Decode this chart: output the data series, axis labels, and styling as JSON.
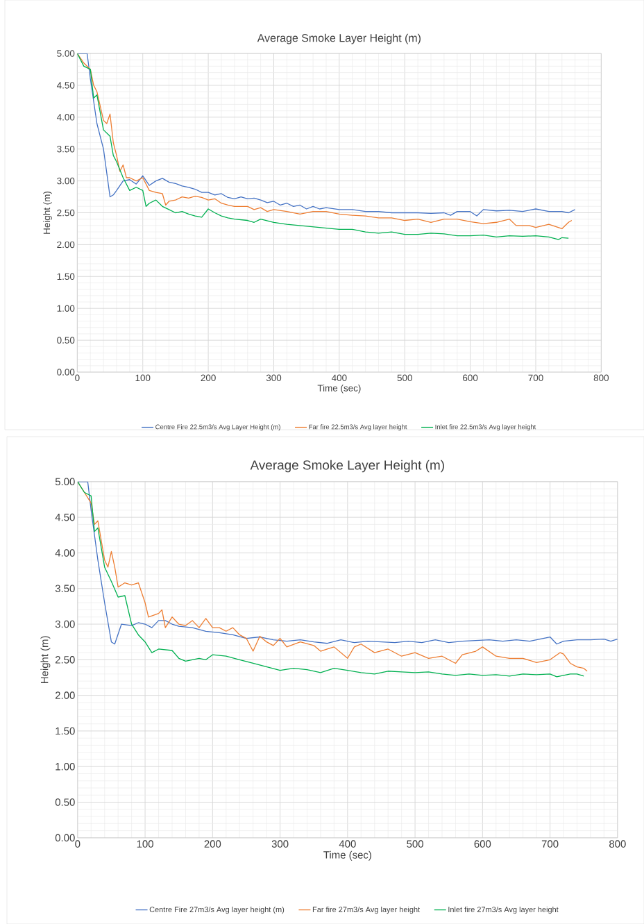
{
  "chart_data": [
    {
      "type": "line",
      "title": "Average Smoke Layer Height (m)",
      "xlabel": "Time (sec)",
      "ylabel": "Height (m)",
      "xlim": [
        0,
        800
      ],
      "ylim": [
        0,
        5
      ],
      "xticks": [
        0,
        100,
        200,
        300,
        400,
        500,
        600,
        700,
        800
      ],
      "yticks": [
        {
          "value": 0,
          "label": "0.00"
        },
        {
          "value": 0.5,
          "label": "0.50"
        },
        {
          "value": 1,
          "label": "1.00"
        },
        {
          "value": 1.5,
          "label": "1.50"
        },
        {
          "value": 2,
          "label": "2.00"
        },
        {
          "value": 2.5,
          "label": "2.50"
        },
        {
          "value": 3,
          "label": "3.00"
        },
        {
          "value": 3.5,
          "label": "3.50"
        },
        {
          "value": 4,
          "label": "4.00"
        },
        {
          "value": 4.5,
          "label": "4.50"
        },
        {
          "value": 5,
          "label": "5.00"
        }
      ],
      "grid": true,
      "legend": "bottom",
      "series": [
        {
          "name": "Centre Fire 22.5m3/s Avg Layer Height (m)",
          "color": "#4472c4",
          "x": [
            0,
            15,
            20,
            30,
            40,
            50,
            55,
            60,
            70,
            80,
            90,
            100,
            110,
            120,
            130,
            140,
            150,
            160,
            170,
            180,
            190,
            200,
            210,
            220,
            230,
            240,
            250,
            260,
            270,
            280,
            290,
            300,
            310,
            320,
            330,
            340,
            350,
            360,
            370,
            380,
            400,
            420,
            440,
            460,
            480,
            500,
            520,
            540,
            560,
            570,
            580,
            600,
            610,
            620,
            640,
            660,
            680,
            700,
            720,
            740,
            750,
            760
          ],
          "values": [
            5.0,
            5.0,
            4.6,
            3.9,
            3.5,
            2.75,
            2.78,
            2.85,
            3.0,
            3.02,
            2.95,
            3.08,
            2.93,
            3.0,
            3.04,
            2.98,
            2.96,
            2.92,
            2.9,
            2.87,
            2.82,
            2.82,
            2.78,
            2.8,
            2.74,
            2.72,
            2.75,
            2.72,
            2.73,
            2.7,
            2.66,
            2.68,
            2.62,
            2.65,
            2.6,
            2.62,
            2.56,
            2.6,
            2.56,
            2.58,
            2.55,
            2.55,
            2.52,
            2.52,
            2.5,
            2.5,
            2.5,
            2.49,
            2.5,
            2.46,
            2.52,
            2.52,
            2.45,
            2.55,
            2.53,
            2.54,
            2.52,
            2.56,
            2.52,
            2.52,
            2.5,
            2.55
          ]
        },
        {
          "name": "Far fire 22.5m3/s Avg layer height",
          "color": "#ed7d31",
          "x": [
            0,
            10,
            20,
            25,
            30,
            40,
            45,
            50,
            55,
            60,
            65,
            70,
            75,
            80,
            90,
            100,
            110,
            120,
            130,
            135,
            140,
            150,
            160,
            170,
            180,
            190,
            200,
            210,
            220,
            230,
            240,
            260,
            270,
            280,
            290,
            300,
            320,
            340,
            360,
            380,
            400,
            420,
            440,
            460,
            480,
            500,
            520,
            540,
            560,
            580,
            600,
            620,
            640,
            660,
            670,
            690,
            700,
            720,
            740,
            750,
            755
          ],
          "values": [
            5.0,
            4.85,
            4.75,
            4.5,
            4.4,
            3.95,
            3.9,
            4.05,
            3.6,
            3.4,
            3.15,
            3.25,
            3.05,
            3.05,
            3.0,
            3.05,
            2.85,
            2.82,
            2.8,
            2.62,
            2.68,
            2.7,
            2.75,
            2.73,
            2.76,
            2.74,
            2.7,
            2.72,
            2.65,
            2.62,
            2.6,
            2.6,
            2.55,
            2.58,
            2.52,
            2.55,
            2.52,
            2.48,
            2.52,
            2.52,
            2.48,
            2.46,
            2.45,
            2.42,
            2.42,
            2.38,
            2.4,
            2.35,
            2.4,
            2.4,
            2.36,
            2.33,
            2.35,
            2.4,
            2.3,
            2.3,
            2.27,
            2.32,
            2.25,
            2.35,
            2.38
          ]
        },
        {
          "name": "Inlet fire 22.5m3/s Avg layer height",
          "color": "#00b050",
          "x": [
            0,
            10,
            20,
            25,
            30,
            40,
            50,
            55,
            60,
            70,
            80,
            90,
            100,
            105,
            110,
            120,
            130,
            140,
            150,
            160,
            170,
            180,
            190,
            200,
            210,
            220,
            230,
            240,
            260,
            270,
            280,
            300,
            320,
            340,
            360,
            380,
            400,
            420,
            440,
            460,
            480,
            500,
            520,
            540,
            560,
            580,
            600,
            620,
            640,
            660,
            680,
            700,
            720,
            735,
            740,
            750
          ],
          "values": [
            5.0,
            4.8,
            4.75,
            4.3,
            4.35,
            3.8,
            3.7,
            3.4,
            3.3,
            3.05,
            2.85,
            2.9,
            2.85,
            2.6,
            2.65,
            2.7,
            2.6,
            2.55,
            2.5,
            2.52,
            2.48,
            2.45,
            2.43,
            2.56,
            2.5,
            2.45,
            2.42,
            2.4,
            2.38,
            2.35,
            2.4,
            2.35,
            2.32,
            2.3,
            2.28,
            2.26,
            2.24,
            2.24,
            2.2,
            2.18,
            2.2,
            2.16,
            2.16,
            2.18,
            2.17,
            2.14,
            2.14,
            2.15,
            2.12,
            2.14,
            2.13,
            2.14,
            2.12,
            2.08,
            2.11,
            2.1
          ]
        }
      ]
    },
    {
      "type": "line",
      "title": "Average Smoke Layer Height (m)",
      "xlabel": "Time (sec)",
      "ylabel": "Height (m)",
      "xlim": [
        0,
        800
      ],
      "ylim": [
        0,
        5
      ],
      "xticks": [
        0,
        100,
        200,
        300,
        400,
        500,
        600,
        700,
        800
      ],
      "yticks": [
        {
          "value": 0,
          "label": "0.00"
        },
        {
          "value": 0.5,
          "label": "0.50"
        },
        {
          "value": 1,
          "label": "1.00"
        },
        {
          "value": 1.5,
          "label": "1.50"
        },
        {
          "value": 2,
          "label": "2.00"
        },
        {
          "value": 2.5,
          "label": "2.50"
        },
        {
          "value": 3,
          "label": "3.00"
        },
        {
          "value": 3.5,
          "label": "3.50"
        },
        {
          "value": 4,
          "label": "4.00"
        },
        {
          "value": 4.5,
          "label": "4.50"
        },
        {
          "value": 5,
          "label": "5.00"
        }
      ],
      "grid": true,
      "legend": "bottom",
      "series": [
        {
          "name": "Centre Fire 27m3/s Avg layer height (m)",
          "color": "#4472c4",
          "x": [
            0,
            15,
            20,
            30,
            40,
            50,
            55,
            65,
            80,
            90,
            100,
            110,
            120,
            130,
            140,
            150,
            170,
            190,
            210,
            230,
            250,
            270,
            290,
            310,
            330,
            350,
            370,
            390,
            410,
            430,
            450,
            470,
            490,
            510,
            530,
            550,
            570,
            590,
            610,
            630,
            650,
            670,
            690,
            700,
            710,
            720,
            740,
            760,
            780,
            790,
            800
          ],
          "values": [
            5.0,
            5.0,
            4.6,
            3.9,
            3.3,
            2.75,
            2.72,
            3.0,
            2.98,
            3.02,
            3.0,
            2.95,
            3.05,
            3.05,
            3.0,
            2.97,
            2.95,
            2.9,
            2.88,
            2.85,
            2.8,
            2.82,
            2.78,
            2.76,
            2.78,
            2.75,
            2.73,
            2.78,
            2.74,
            2.76,
            2.75,
            2.74,
            2.76,
            2.74,
            2.78,
            2.74,
            2.76,
            2.77,
            2.78,
            2.76,
            2.78,
            2.76,
            2.8,
            2.82,
            2.72,
            2.76,
            2.78,
            2.78,
            2.79,
            2.76,
            2.79
          ]
        },
        {
          "name": "Far fire 27m3/s Avg layer height",
          "color": "#ed7d31",
          "x": [
            0,
            10,
            20,
            25,
            30,
            40,
            45,
            50,
            55,
            60,
            70,
            80,
            90,
            100,
            105,
            120,
            125,
            130,
            140,
            150,
            160,
            170,
            180,
            190,
            200,
            210,
            220,
            230,
            240,
            250,
            260,
            270,
            280,
            290,
            300,
            310,
            330,
            350,
            360,
            370,
            380,
            400,
            410,
            420,
            440,
            460,
            480,
            500,
            520,
            540,
            560,
            570,
            590,
            600,
            620,
            640,
            660,
            680,
            700,
            715,
            720,
            730,
            740,
            750,
            755
          ],
          "values": [
            5.0,
            4.85,
            4.7,
            4.4,
            4.45,
            3.9,
            3.8,
            4.02,
            3.8,
            3.52,
            3.58,
            3.55,
            3.58,
            3.3,
            3.1,
            3.15,
            3.2,
            2.95,
            3.1,
            3.0,
            2.98,
            3.05,
            2.95,
            3.08,
            2.95,
            2.95,
            2.9,
            2.95,
            2.85,
            2.8,
            2.62,
            2.83,
            2.75,
            2.7,
            2.8,
            2.68,
            2.75,
            2.7,
            2.62,
            2.65,
            2.68,
            2.52,
            2.68,
            2.72,
            2.6,
            2.65,
            2.55,
            2.6,
            2.52,
            2.55,
            2.45,
            2.57,
            2.62,
            2.68,
            2.55,
            2.52,
            2.52,
            2.46,
            2.5,
            2.6,
            2.58,
            2.45,
            2.4,
            2.38,
            2.34
          ]
        },
        {
          "name": "Inlet fire 27m3/s Avg layer height",
          "color": "#00b050",
          "x": [
            0,
            10,
            20,
            25,
            30,
            40,
            50,
            60,
            70,
            80,
            90,
            100,
            110,
            120,
            140,
            150,
            160,
            180,
            190,
            200,
            220,
            240,
            260,
            280,
            300,
            320,
            340,
            360,
            380,
            400,
            420,
            440,
            460,
            480,
            500,
            520,
            540,
            560,
            580,
            600,
            620,
            640,
            660,
            680,
            700,
            710,
            730,
            740,
            750
          ],
          "values": [
            5.0,
            4.85,
            4.8,
            4.3,
            4.35,
            3.8,
            3.6,
            3.38,
            3.4,
            3.0,
            2.85,
            2.75,
            2.6,
            2.65,
            2.63,
            2.52,
            2.48,
            2.52,
            2.5,
            2.57,
            2.55,
            2.5,
            2.45,
            2.4,
            2.35,
            2.38,
            2.36,
            2.32,
            2.38,
            2.35,
            2.32,
            2.3,
            2.34,
            2.33,
            2.32,
            2.33,
            2.3,
            2.28,
            2.3,
            2.28,
            2.29,
            2.27,
            2.3,
            2.29,
            2.3,
            2.26,
            2.3,
            2.3,
            2.27
          ]
        }
      ]
    }
  ]
}
